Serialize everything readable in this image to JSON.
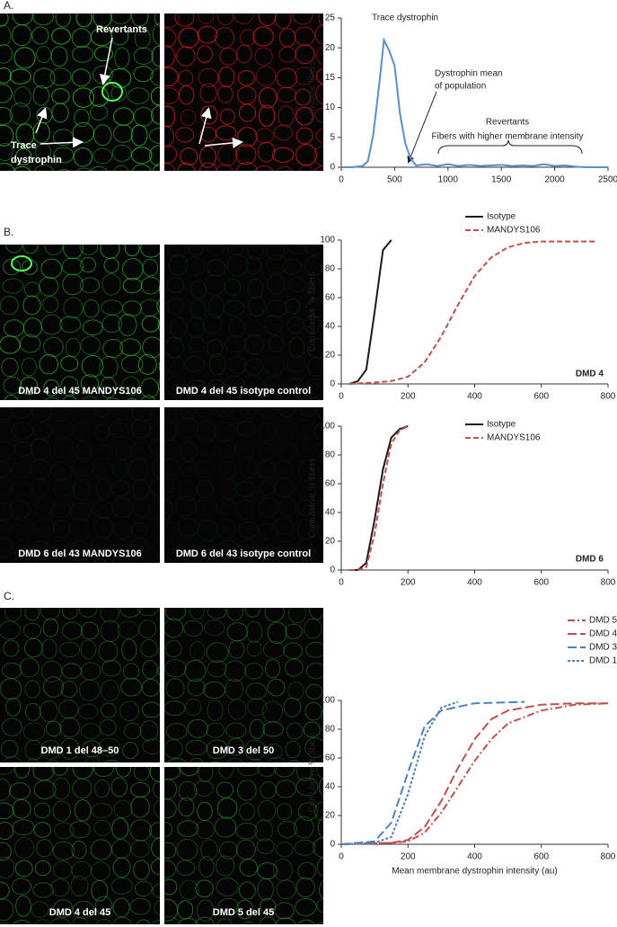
{
  "panel_labels": [
    "A.",
    "B.",
    "C."
  ],
  "image_labels": [
    "Revertants",
    "Trace",
    "dystrophin",
    "DMD 4 del 45 MANDYS106",
    "DMD 4 del 45 isotype control",
    "DMD 6 del 43 MANDYS106",
    "DMD 6 del 43 isotype control",
    "DMD 1 del 48–50",
    "DMD 3  del 50",
    "DMD 4 del 45",
    "DMD 5 del 45"
  ],
  "chart_data": [
    {
      "type": "line",
      "title": "Trace dystrophin",
      "ylabel": "% Muscle fibers",
      "xlim": [
        0,
        2500
      ],
      "ylim": [
        0,
        25
      ],
      "xticks": [
        0,
        500,
        1000,
        1500,
        2000,
        2500
      ],
      "yticks": [
        0,
        5,
        10,
        15,
        20,
        25
      ],
      "annotations": [
        "Dystrophin mean",
        "of population",
        "Revertants",
        "Fibers with higher membrane intensity"
      ],
      "series": [
        {
          "color": "#5b8fc7",
          "style": "solid",
          "x": [
            0,
            100,
            200,
            250,
            300,
            350,
            400,
            450,
            500,
            550,
            600,
            650,
            700,
            800,
            900,
            1000,
            1100,
            1200,
            1300,
            1400,
            1500,
            1600,
            1700,
            1800,
            1900,
            2000,
            2100,
            2200,
            2300,
            2400,
            2500
          ],
          "values": [
            0,
            0,
            0.2,
            1,
            5.5,
            13,
            21.3,
            19.5,
            17,
            9,
            4,
            1.5,
            0.3,
            0.5,
            0.2,
            0.5,
            0.2,
            0.4,
            0.2,
            0.3,
            0.4,
            0.2,
            0.3,
            0.2,
            0.5,
            0.2,
            0.3,
            0.1,
            0,
            0,
            0
          ]
        }
      ]
    },
    {
      "type": "line",
      "ylabel": "Cumulative % fibers",
      "xlim": [
        0,
        800
      ],
      "ylim": [
        0,
        100
      ],
      "xticks": [
        0,
        200,
        400,
        600,
        800
      ],
      "yticks": [
        0,
        20,
        40,
        60,
        80,
        100
      ],
      "annotations": [
        "DMD 4"
      ],
      "legend": true,
      "series": [
        {
          "name": "Isotype",
          "color": "#1a1a1a",
          "style": "solid",
          "x": [
            25,
            50,
            75,
            100,
            125,
            150
          ],
          "values": [
            0,
            2,
            10,
            50,
            93,
            100
          ]
        },
        {
          "name": "MANDYS106",
          "color": "#c0504d",
          "style": "dashed",
          "x": [
            25,
            100,
            150,
            200,
            250,
            300,
            350,
            400,
            450,
            500,
            550,
            600,
            650,
            700,
            760
          ],
          "values": [
            0,
            1,
            2,
            5,
            15,
            33,
            55,
            75,
            88,
            95,
            98,
            99,
            99,
            99,
            99
          ]
        }
      ]
    },
    {
      "type": "line",
      "ylabel": "Cumulative % fibers",
      "xlim": [
        0,
        800
      ],
      "ylim": [
        0,
        100
      ],
      "xticks": [
        0,
        200,
        400,
        600,
        800
      ],
      "yticks": [
        0,
        20,
        40,
        60,
        80,
        100
      ],
      "annotations": [
        "DMD 6"
      ],
      "legend": true,
      "series": [
        {
          "name": "Isotype",
          "color": "#1a1a1a",
          "style": "solid",
          "x": [
            25,
            50,
            75,
            100,
            125,
            150,
            175,
            200
          ],
          "values": [
            0,
            0,
            5,
            35,
            70,
            92,
            98,
            100
          ]
        },
        {
          "name": "MANDYS106",
          "color": "#c0504d",
          "style": "dashed",
          "x": [
            25,
            50,
            75,
            100,
            125,
            150,
            175,
            200
          ],
          "values": [
            0,
            0,
            2,
            25,
            60,
            88,
            97,
            100
          ]
        }
      ]
    },
    {
      "type": "line",
      "ylabel": "Cumulative % fibers",
      "xlabel": "Mean membrane dystrophin intensity (au)",
      "xlim": [
        0,
        800
      ],
      "ylim": [
        0,
        100
      ],
      "xticks": [
        0,
        200,
        400,
        600,
        800
      ],
      "yticks": [
        0,
        20,
        40,
        60,
        80,
        100
      ],
      "legend": true,
      "series": [
        {
          "name": "DMD 5",
          "color": "#c0504d",
          "style": "dashdot",
          "x": [
            0,
            150,
            200,
            250,
            300,
            350,
            400,
            450,
            500,
            600,
            700,
            800
          ],
          "values": [
            0,
            1,
            2,
            8,
            22,
            40,
            58,
            73,
            84,
            93,
            97,
            98
          ]
        },
        {
          "name": "DMD 4",
          "color": "#c0504d",
          "style": "longdash",
          "x": [
            0,
            150,
            200,
            250,
            300,
            350,
            400,
            450,
            500,
            600,
            700,
            800
          ],
          "values": [
            0,
            1,
            3,
            12,
            30,
            53,
            73,
            87,
            93,
            97,
            98,
            98
          ]
        },
        {
          "name": "DMD 3",
          "color": "#4f81bd",
          "style": "longdash",
          "x": [
            0,
            100,
            150,
            200,
            250,
            300,
            400,
            550
          ],
          "values": [
            0,
            2,
            15,
            50,
            82,
            93,
            98,
            99
          ]
        },
        {
          "name": "DMD 1",
          "color": "#4f81bd",
          "style": "dotted",
          "x": [
            0,
            100,
            150,
            200,
            250,
            300,
            350
          ],
          "values": [
            0,
            1,
            5,
            35,
            75,
            95,
            99
          ]
        }
      ]
    }
  ]
}
